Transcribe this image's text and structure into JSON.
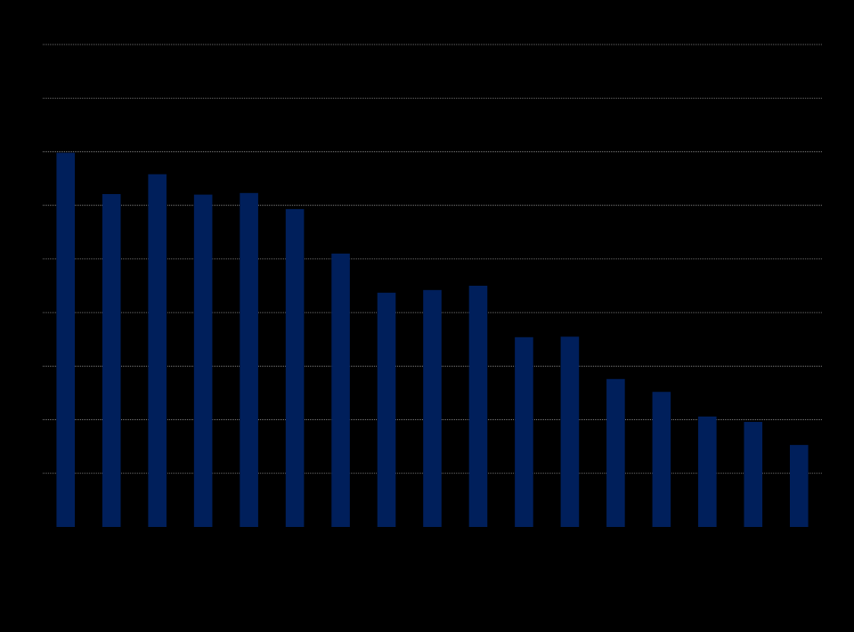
{
  "chart_data": {
    "type": "bar",
    "categories": [
      null,
      null,
      null,
      null,
      null,
      null,
      null,
      null,
      null,
      null,
      null,
      null,
      null,
      null,
      null,
      null,
      null
    ],
    "values": [
      6.98,
      6.21,
      6.58,
      6.2,
      6.23,
      5.93,
      5.1,
      4.37,
      4.42,
      4.5,
      3.54,
      3.55,
      2.76,
      2.52,
      2.06,
      1.96,
      1.53
    ],
    "color": "#001f5b",
    "ylim": [
      0,
      9
    ],
    "yticks": [
      1,
      2,
      3,
      4,
      5,
      6,
      7,
      8,
      9
    ],
    "grid": true,
    "grid_color": "#8c8c8c"
  }
}
